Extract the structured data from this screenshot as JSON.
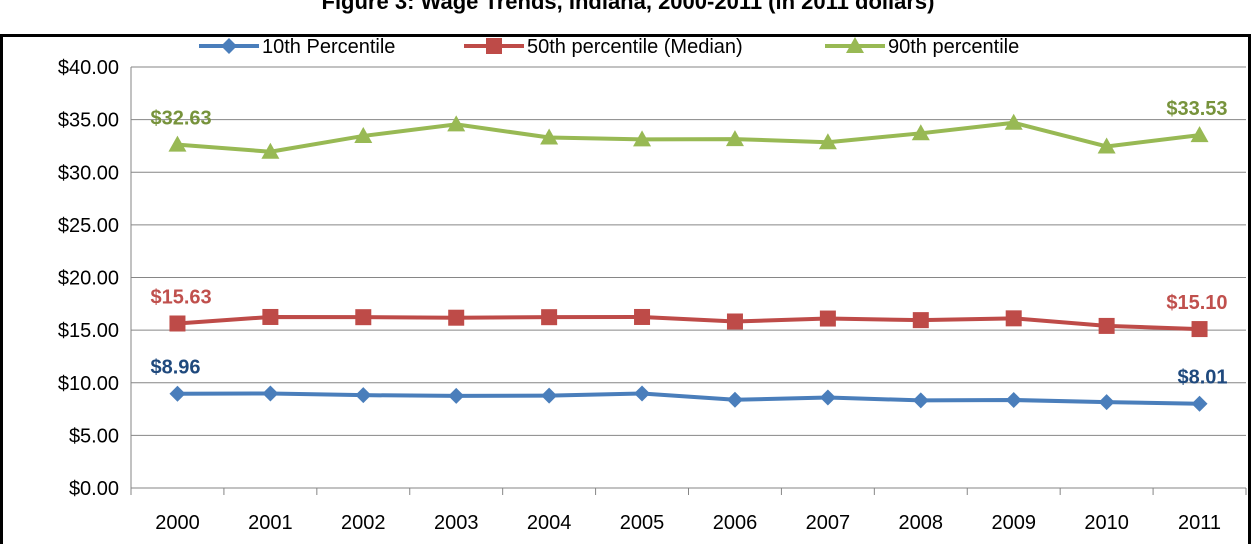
{
  "chart_data": {
    "type": "line",
    "title": "Figure 3: Wage Trends, Indiana, 2000-2011 (in 2011 dollars)",
    "categories": [
      "2000",
      "2001",
      "2002",
      "2003",
      "2004",
      "2005",
      "2006",
      "2007",
      "2008",
      "2009",
      "2010",
      "2011"
    ],
    "ylim": [
      0,
      40
    ],
    "yticks": [
      "$0.00",
      "$5.00",
      "$10.00",
      "$15.00",
      "$20.00",
      "$25.00",
      "$30.00",
      "$35.00",
      "$40.00"
    ],
    "grid": true,
    "legend_position": "top",
    "series": [
      {
        "name": "10th Percentile",
        "color": "#4a7ebb",
        "marker": "diamond",
        "values": [
          8.96,
          8.98,
          8.82,
          8.75,
          8.78,
          8.98,
          8.38,
          8.6,
          8.32,
          8.36,
          8.16,
          8.01
        ]
      },
      {
        "name": "50th percentile (Median)",
        "color": "#be4b48",
        "marker": "square",
        "values": [
          15.63,
          16.25,
          16.23,
          16.18,
          16.23,
          16.25,
          15.82,
          16.1,
          15.95,
          16.12,
          15.4,
          15.1
        ]
      },
      {
        "name": "90th percentile",
        "color": "#98b954",
        "marker": "triangle",
        "values": [
          32.63,
          31.95,
          33.45,
          34.55,
          33.3,
          33.12,
          33.15,
          32.85,
          33.7,
          34.7,
          32.45,
          33.53
        ]
      }
    ],
    "data_labels": [
      {
        "text": "$32.63",
        "series": 2,
        "index": 0,
        "color": "#77933c"
      },
      {
        "text": "$33.53",
        "series": 2,
        "index": 11,
        "color": "#77933c"
      },
      {
        "text": "$15.63",
        "series": 1,
        "index": 0,
        "color": "#c0504d"
      },
      {
        "text": "$15.10",
        "series": 1,
        "index": 11,
        "color": "#c0504d"
      },
      {
        "text": "$8.96",
        "series": 0,
        "index": 0,
        "color": "#1f497d"
      },
      {
        "text": "$8.01",
        "series": 0,
        "index": 11,
        "color": "#1f497d"
      }
    ]
  }
}
